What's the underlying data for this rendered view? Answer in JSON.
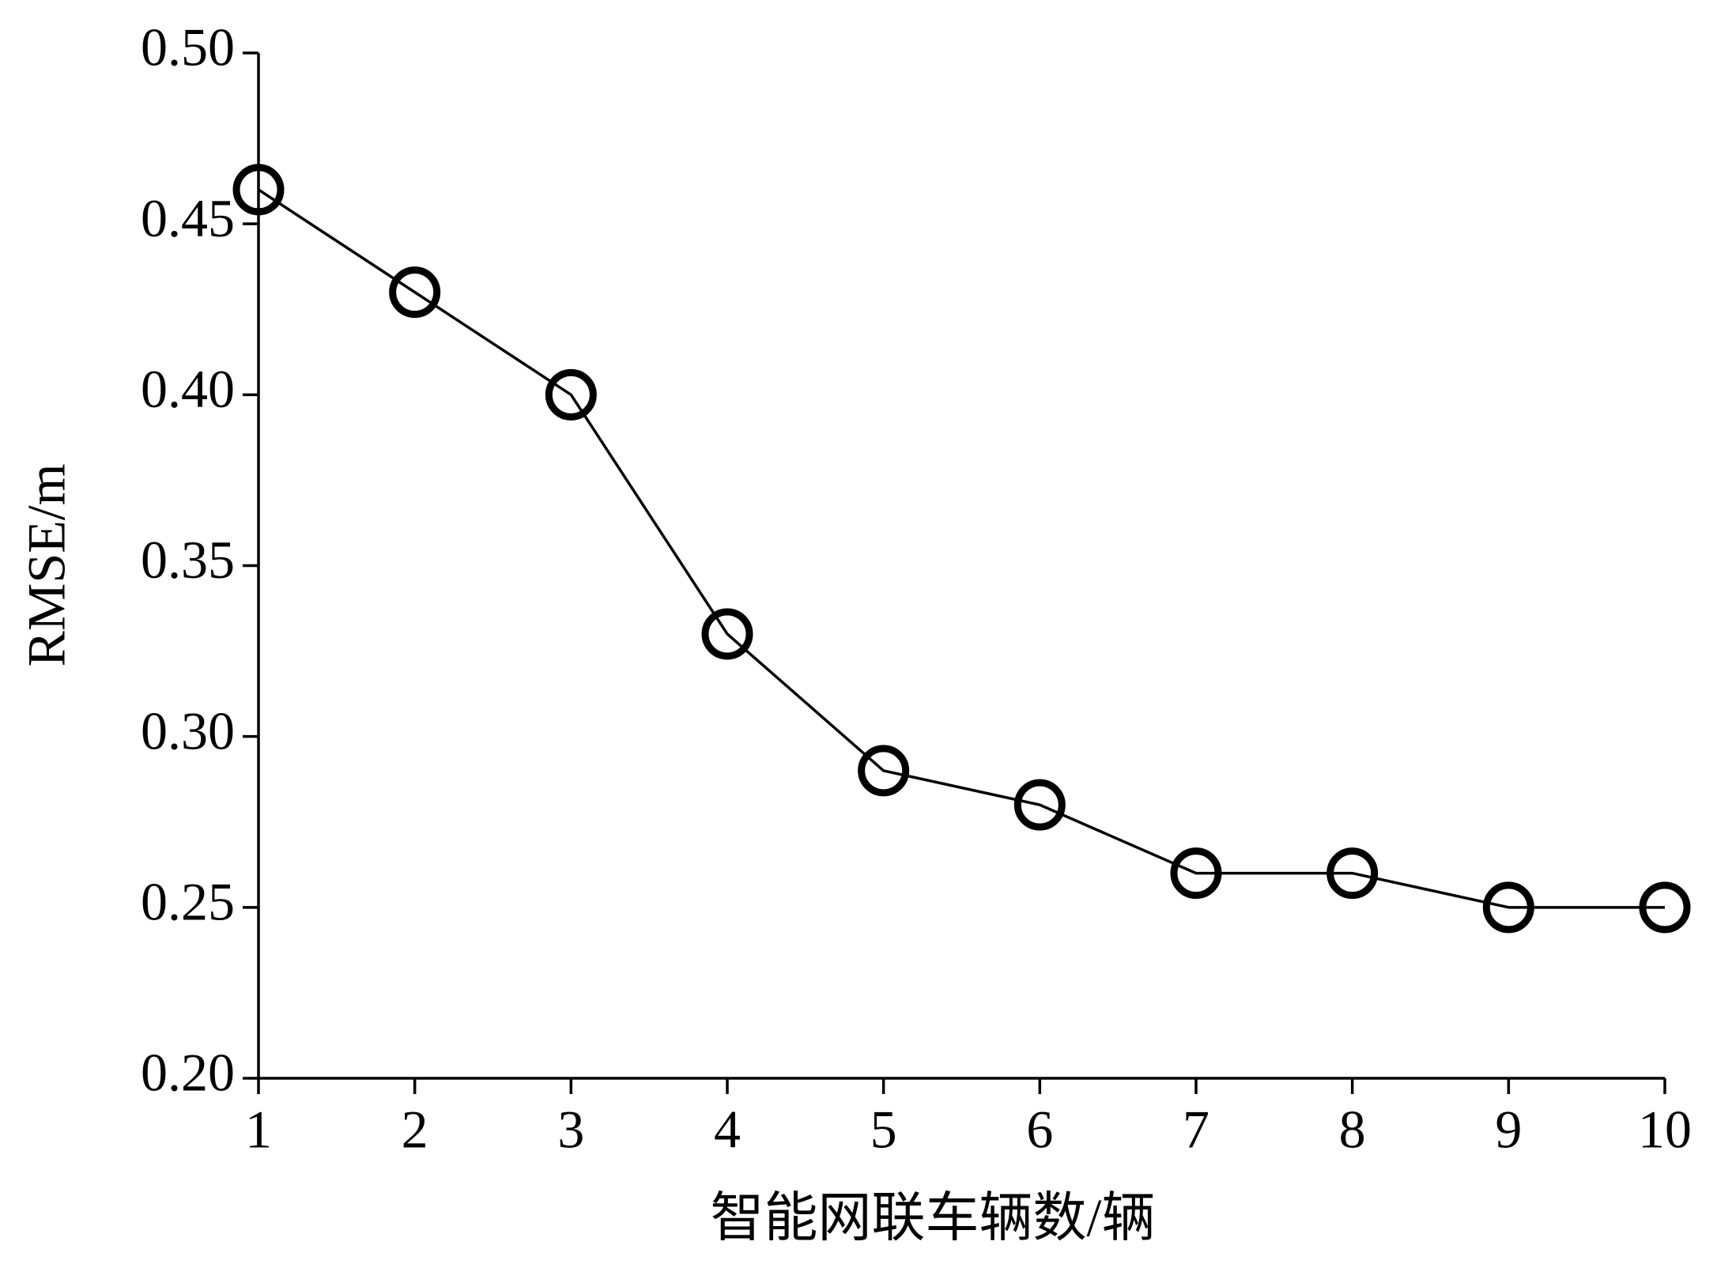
{
  "chart_data": {
    "type": "line",
    "x_label": "智能网联车辆数/辆",
    "y_label": "RMSE/m",
    "x": [
      1,
      2,
      3,
      4,
      5,
      6,
      7,
      8,
      9,
      10
    ],
    "series": [
      {
        "color": "#000000",
        "values": [
          0.46,
          0.43,
          0.4,
          0.33,
          0.29,
          0.28,
          0.26,
          0.26,
          0.25,
          0.25
        ]
      }
    ],
    "xlim": [
      1,
      10
    ],
    "xticks": [
      1,
      2,
      3,
      4,
      5,
      6,
      7,
      8,
      9,
      10
    ],
    "ylim": [
      0.2,
      0.5
    ],
    "yticks": [
      {
        "value": 0.2,
        "label": "0.20"
      },
      {
        "value": 0.25,
        "label": "0.25"
      },
      {
        "value": 0.3,
        "label": "0.30"
      },
      {
        "value": 0.35,
        "label": "0.35"
      },
      {
        "value": 0.4,
        "label": "0.40"
      },
      {
        "value": 0.45,
        "label": "0.45"
      },
      {
        "value": 0.5,
        "label": "0.50"
      }
    ],
    "grid": false
  }
}
